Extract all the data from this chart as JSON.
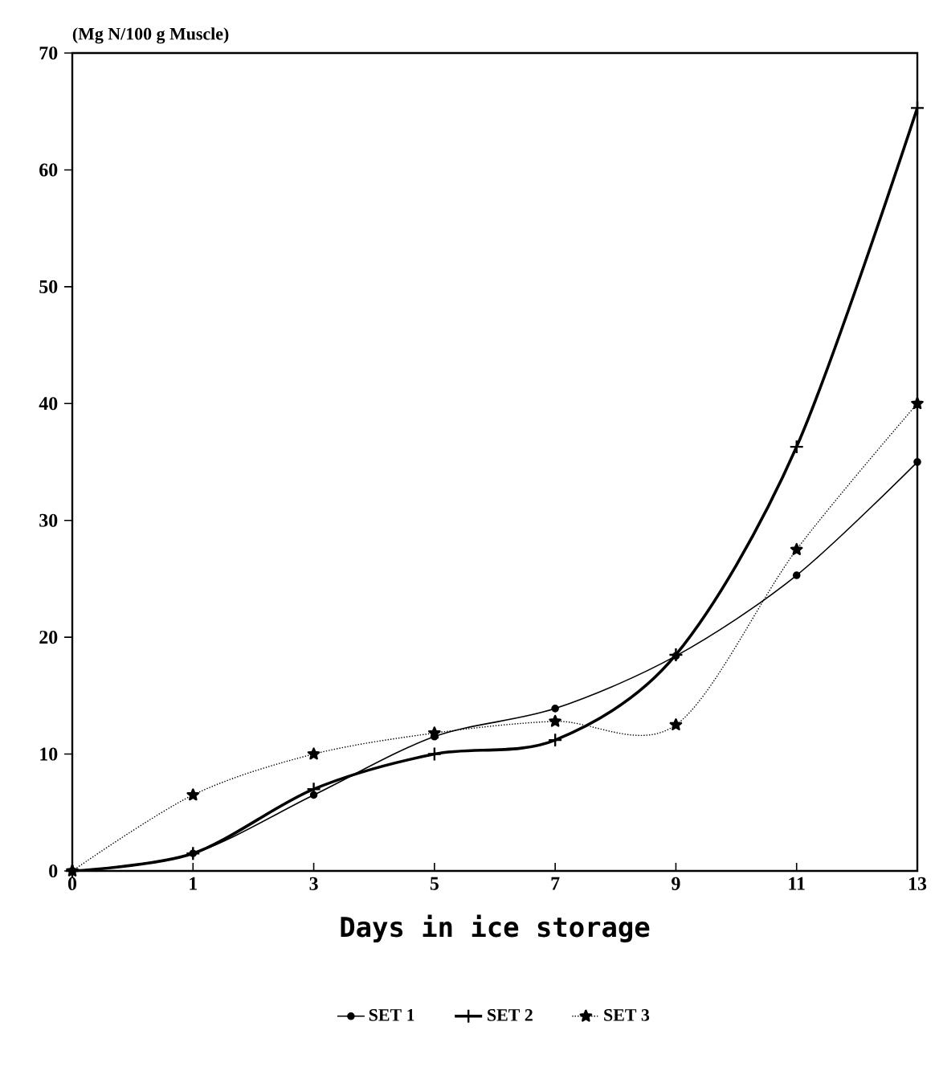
{
  "chart_data": {
    "type": "line",
    "xlabel": "Days in ice storage",
    "ylabel": "(Mg N/100 g Muscle)",
    "categories": [
      "0",
      "1",
      "3",
      "5",
      "7",
      "9",
      "11",
      "13"
    ],
    "series": [
      {
        "name": "SET 1",
        "color": "#000000",
        "marker": "circle",
        "line_style": "solid",
        "values": [
          0,
          1.5,
          6.5,
          11.5,
          13.9,
          18.4,
          25.3,
          35
        ]
      },
      {
        "name": "SET 2",
        "color": "#000000",
        "marker": "cross",
        "line_style": "solid",
        "values": [
          0,
          1.5,
          7,
          10,
          11.2,
          18.5,
          36.3,
          65.3
        ]
      },
      {
        "name": "SET 3",
        "color": "#000000",
        "marker": "star",
        "line_style": "dotted",
        "values": [
          0,
          6.5,
          10,
          11.8,
          12.8,
          12.5,
          27.5,
          40
        ]
      }
    ],
    "ylim": [
      0,
      70
    ],
    "yticks": [
      0,
      10,
      20,
      30,
      40,
      50,
      60,
      70
    ],
    "grid": false,
    "legend": "bottom"
  }
}
